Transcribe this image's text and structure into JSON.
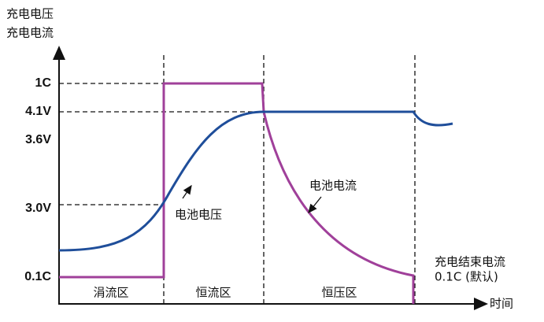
{
  "axis": {
    "y_label_lines": [
      "充电电压",
      "充电电流"
    ],
    "x_label": "时间"
  },
  "y_labels": [
    "1C",
    "4.1V",
    "3.6V",
    "3.0V",
    "0.1C"
  ],
  "zones": [
    "涓流区",
    "恒流区",
    "恒压区"
  ],
  "annotations": {
    "voltage": "电池电压",
    "current": "电池电流",
    "end_current_lines": [
      "充电结束电流",
      "0.1C (默认)"
    ]
  }
}
